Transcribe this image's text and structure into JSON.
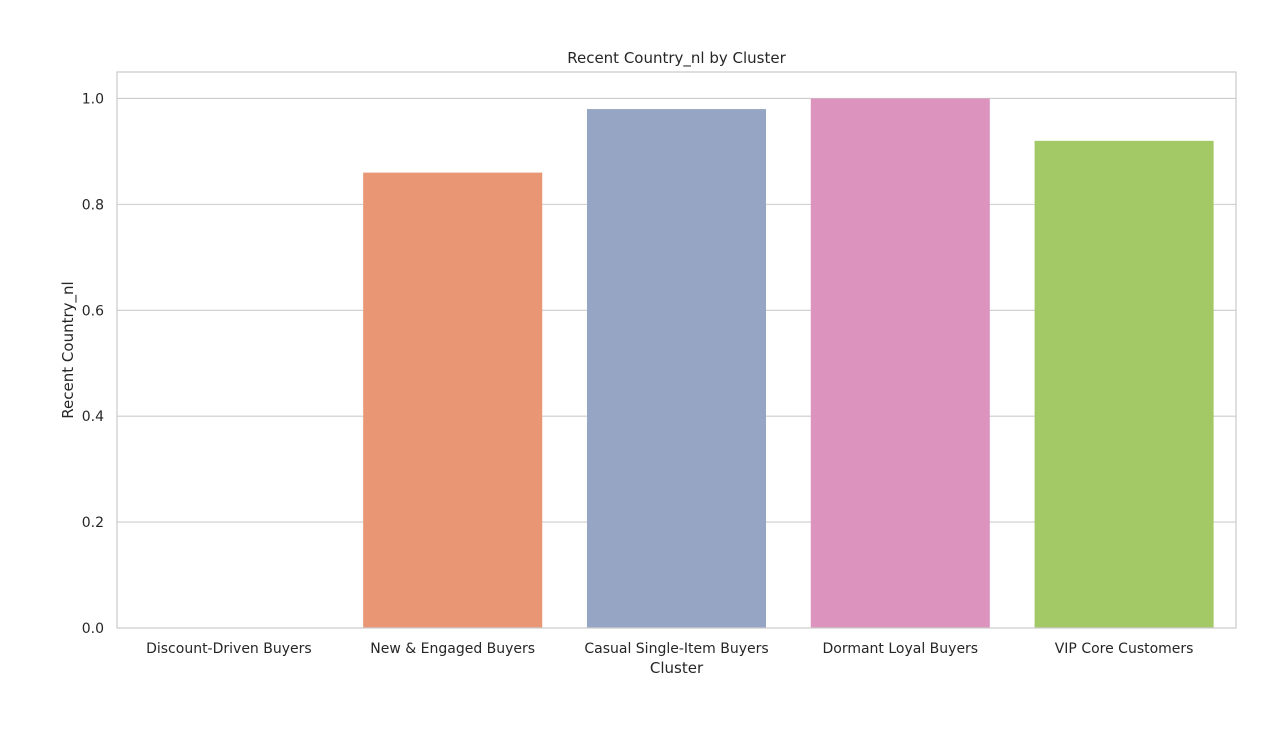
{
  "chart_data": {
    "type": "bar",
    "title": "Recent Country_nl by Cluster",
    "xlabel": "Cluster",
    "ylabel": "Recent Country_nl",
    "categories": [
      "Discount-Driven Buyers",
      "New & Engaged Buyers",
      "Casual Single-Item Buyers",
      "Dormant Loyal Buyers",
      "VIP Core Customers"
    ],
    "values": [
      0.0,
      0.86,
      0.98,
      1.0,
      0.92
    ],
    "colors": [
      "#66c2a5",
      "#e99675",
      "#95a5c3",
      "#dc94bf",
      "#a2c966"
    ],
    "ylim": [
      0,
      1.05
    ],
    "yticks": [
      "0.0",
      "0.2",
      "0.4",
      "0.6",
      "0.8",
      "1.0"
    ],
    "grid": true,
    "legend": "none"
  }
}
